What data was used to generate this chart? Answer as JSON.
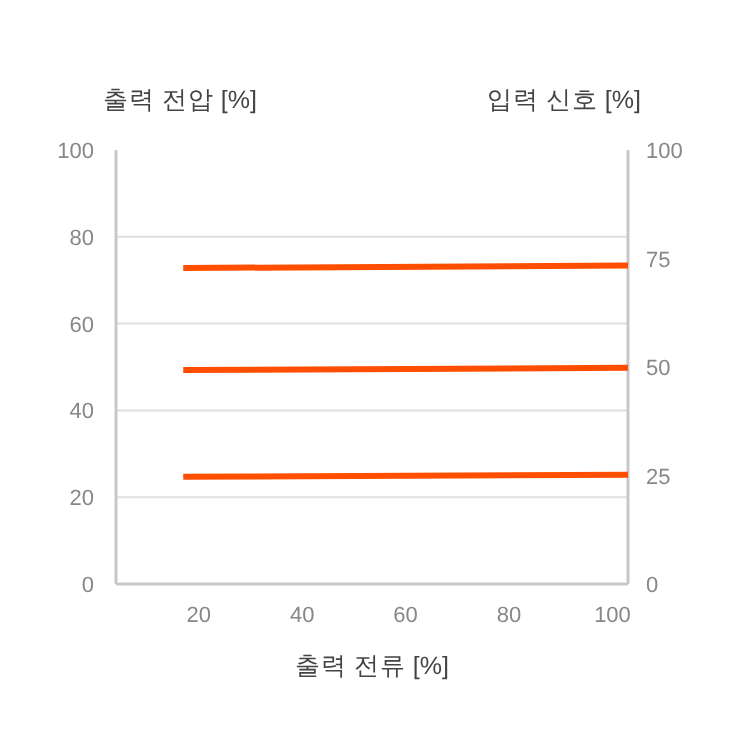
{
  "chart_data": {
    "type": "line",
    "xlabel": "출력 전류 [%]",
    "ylabel": "출력 전압 [%]",
    "y2label": "입력 신호 [%]",
    "x": [
      17,
      103
    ],
    "xlim": [
      4,
      103
    ],
    "xticks": [
      20,
      40,
      60,
      80,
      100
    ],
    "ylim": [
      0,
      100
    ],
    "yticks": [
      0,
      20,
      40,
      60,
      80,
      100
    ],
    "y2lim": [
      0,
      100
    ],
    "y2ticks": [
      0,
      25,
      50,
      75,
      100
    ],
    "grid": "y",
    "series": [
      {
        "color": "#ff4e00",
        "values": [
          72.8,
          73.4
        ]
      },
      {
        "color": "#ff4e00",
        "values": [
          49.3,
          49.8
        ]
      },
      {
        "color": "#ff4e00",
        "values": [
          24.7,
          25.2
        ]
      }
    ]
  }
}
